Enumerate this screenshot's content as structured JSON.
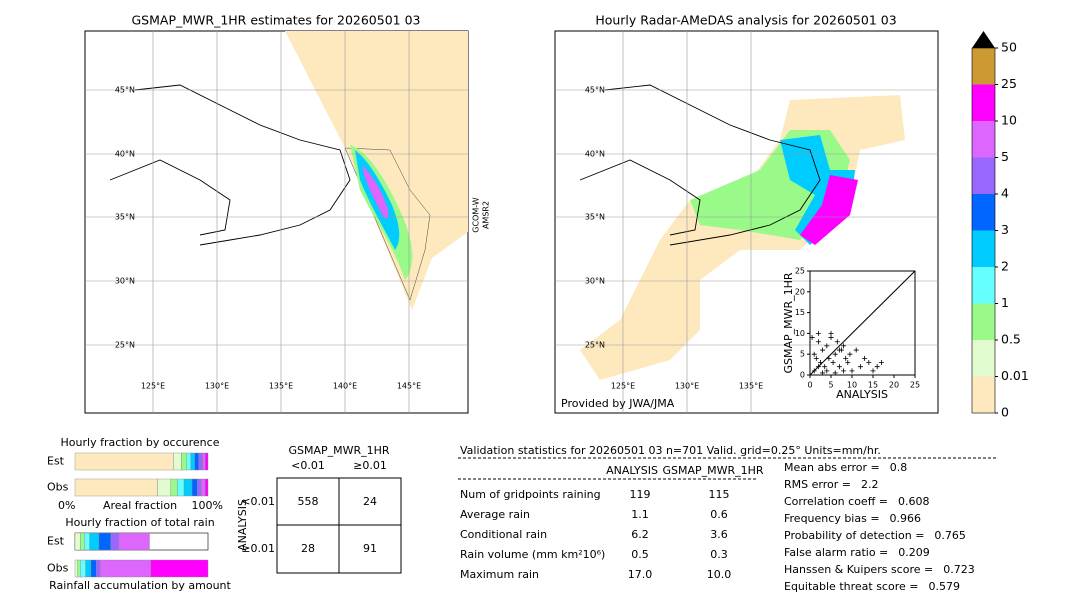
{
  "left_map": {
    "title": "GSMAP_MWR_1HR estimates for 20260501 03",
    "lat_labels": [
      "45°N",
      "40°N",
      "35°N",
      "30°N",
      "25°N"
    ],
    "lon_labels": [
      "125°E",
      "130°E",
      "135°E",
      "140°E",
      "145°E"
    ],
    "satellite_label": [
      "GCOM-W",
      "AMSR2"
    ]
  },
  "right_map": {
    "title": "Hourly Radar-AMeDAS analysis for 20260501 03",
    "lat_labels": [
      "45°N",
      "40°N",
      "35°N",
      "30°N",
      "25°N"
    ],
    "lon_labels": [
      "125°E",
      "130°E",
      "135°E"
    ],
    "credit": "Provided by JWA/JMA"
  },
  "scatter": {
    "type": "scatter",
    "xlabel": "ANALYSIS",
    "ylabel": "GSMAP_MWR_1HR",
    "xlim": [
      0,
      25
    ],
    "ylim": [
      0,
      25
    ],
    "xticks": [
      0,
      5,
      10,
      15,
      20,
      25
    ],
    "yticks": [
      0,
      5,
      10,
      15,
      20,
      25
    ],
    "x": [
      0.5,
      1,
      1.5,
      2,
      2.5,
      3,
      3.5,
      4,
      4.5,
      5,
      5.5,
      6,
      6.5,
      7,
      7.5,
      8,
      8.5,
      9,
      9.5,
      10,
      11,
      12,
      13,
      14,
      15,
      16,
      17,
      1,
      2,
      3,
      4,
      6,
      8,
      2,
      5,
      7
    ],
    "y": [
      9,
      5,
      4,
      8,
      3,
      6,
      2,
      7,
      4,
      9,
      3,
      5,
      8,
      2,
      6,
      7,
      4,
      3,
      5,
      1,
      6,
      2,
      4,
      3,
      1,
      2,
      3,
      1,
      2,
      0.5,
      1,
      0.5,
      1,
      10,
      10,
      6
    ]
  },
  "colorbar": {
    "levels": [
      0,
      0.01,
      0.5,
      1,
      2,
      3,
      4,
      5,
      10,
      25,
      50
    ],
    "colors": [
      "#fde9bd",
      "#e2fcd0",
      "#99fa8a",
      "#66ffff",
      "#00ccff",
      "#0066ff",
      "#9966ff",
      "#dd66ff",
      "#ff00ff",
      "#cc9933"
    ]
  },
  "occurrence": {
    "title": "Hourly fraction by occurence",
    "xlabel": "Areal fraction",
    "left": "0%",
    "right": "100%",
    "rows": [
      {
        "label": "Est",
        "segments": [
          {
            "color": "#fde9bd",
            "value": 74
          },
          {
            "color": "#e2fcd0",
            "value": 6
          },
          {
            "color": "#99fa8a",
            "value": 4
          },
          {
            "color": "#66ffff",
            "value": 3
          },
          {
            "color": "#00ccff",
            "value": 3
          },
          {
            "color": "#0066ff",
            "value": 3
          },
          {
            "color": "#9966ff",
            "value": 3
          },
          {
            "color": "#dd66ff",
            "value": 2
          },
          {
            "color": "#ff00ff",
            "value": 2
          }
        ]
      },
      {
        "label": "Obs",
        "segments": [
          {
            "color": "#fde9bd",
            "value": 62
          },
          {
            "color": "#e2fcd0",
            "value": 10
          },
          {
            "color": "#99fa8a",
            "value": 5
          },
          {
            "color": "#66ffff",
            "value": 5
          },
          {
            "color": "#00ccff",
            "value": 6
          },
          {
            "color": "#0066ff",
            "value": 4
          },
          {
            "color": "#9966ff",
            "value": 3
          },
          {
            "color": "#dd66ff",
            "value": 3
          },
          {
            "color": "#ff00ff",
            "value": 2
          }
        ]
      }
    ]
  },
  "total": {
    "title": "Hourly fraction of total rain",
    "xlabel": "Rainfall accumulation by amount",
    "rows": [
      {
        "label": "Est",
        "segments": [
          {
            "color": "#e2fcd0",
            "value": 4
          },
          {
            "color": "#99fa8a",
            "value": 3
          },
          {
            "color": "#66ffff",
            "value": 4
          },
          {
            "color": "#00ccff",
            "value": 7
          },
          {
            "color": "#0066ff",
            "value": 9
          },
          {
            "color": "#9966ff",
            "value": 6
          },
          {
            "color": "#dd66ff",
            "value": 23
          }
        ]
      },
      {
        "label": "Obs",
        "segments": [
          {
            "color": "#e2fcd0",
            "value": 2
          },
          {
            "color": "#99fa8a",
            "value": 2
          },
          {
            "color": "#66ffff",
            "value": 4
          },
          {
            "color": "#00ccff",
            "value": 4
          },
          {
            "color": "#0066ff",
            "value": 4
          },
          {
            "color": "#9966ff",
            "value": 3
          },
          {
            "color": "#dd66ff",
            "value": 38
          },
          {
            "color": "#ff00ff",
            "value": 43
          }
        ]
      }
    ]
  },
  "contingency": {
    "title": "GSMAP_MWR_1HR",
    "columns": [
      "<0.01",
      "≥0.01"
    ],
    "ylabel": "ANALYSIS",
    "rows": [
      "<0.01",
      "≥0.01"
    ],
    "cells": [
      [
        "558",
        "24"
      ],
      [
        "28",
        "91"
      ]
    ]
  },
  "validation": {
    "header": "Validation statistics for 20260501 03  n=701 Valid. grid=0.25° Units=mm/hr.",
    "columns": [
      "ANALYSIS",
      "GSMAP_MWR_1HR"
    ],
    "rows": [
      [
        "Num of gridpoints raining",
        "119",
        "115"
      ],
      [
        "Average rain",
        "1.1",
        "0.6"
      ],
      [
        "Conditional rain",
        "6.2",
        "3.6"
      ],
      [
        "Rain volume (mm km²10⁶)",
        "0.5",
        "0.3"
      ],
      [
        "Maximum rain",
        "17.0",
        "10.0"
      ]
    ],
    "scores": [
      [
        "Mean abs error =",
        "0.8"
      ],
      [
        "RMS error =",
        "2.2"
      ],
      [
        "Correlation coeff =",
        "0.608"
      ],
      [
        "Frequency bias =",
        "0.966"
      ],
      [
        "Probability of detection =",
        "0.765"
      ],
      [
        "False alarm ratio =",
        "0.209"
      ],
      [
        "Hanssen & Kuipers score =",
        "0.723"
      ],
      [
        "Equitable threat score =",
        "0.579"
      ]
    ]
  }
}
